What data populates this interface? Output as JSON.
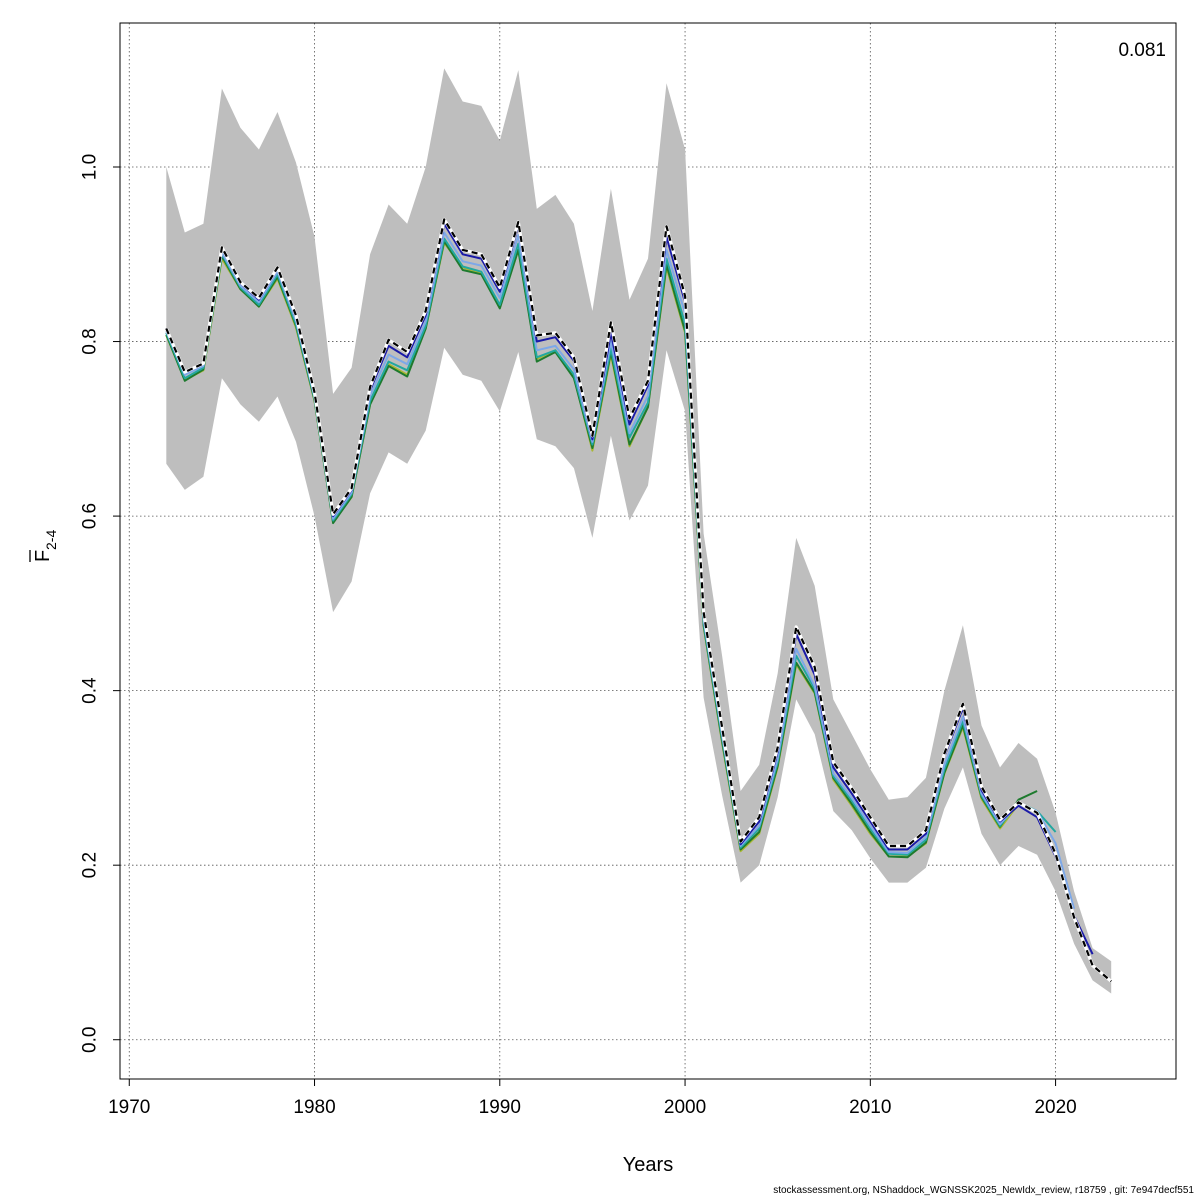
{
  "footer_text": "stockassessment.org, NShaddock_WGNSSK2025_NewIdx_review, r18759 , git: 7e947decf551",
  "chart_data": {
    "type": "line",
    "corner_value": "0.081",
    "xlabel": "Years",
    "ylabel_main": "F",
    "ylabel_sub": "2-4",
    "xlim": [
      1969.5,
      2026.5
    ],
    "ylim": [
      -0.045,
      1.165
    ],
    "xticks": [
      1970,
      1980,
      1990,
      2000,
      2010,
      2020
    ],
    "yticks": [
      0.0,
      0.2,
      0.4,
      0.6,
      0.8,
      1.0
    ],
    "ytick_labels": [
      "0.0",
      "0.2",
      "0.4",
      "0.6",
      "0.8",
      "1.0"
    ],
    "grid": true,
    "band_color": "#bebebe",
    "band": {
      "x": [
        1972,
        1973,
        1974,
        1975,
        1976,
        1977,
        1978,
        1979,
        1980,
        1981,
        1982,
        1983,
        1984,
        1985,
        1986,
        1987,
        1988,
        1989,
        1990,
        1991,
        1992,
        1993,
        1994,
        1995,
        1996,
        1997,
        1998,
        1999,
        2000,
        2001,
        2002,
        2003,
        2004,
        2005,
        2006,
        2007,
        2008,
        2009,
        2010,
        2011,
        2012,
        2013,
        2014,
        2015,
        2016,
        2017,
        2018,
        2019,
        2020,
        2021,
        2022,
        2023
      ],
      "upper": [
        1.0,
        0.925,
        0.935,
        1.09,
        1.045,
        1.02,
        1.063,
        1.005,
        0.92,
        0.74,
        0.77,
        0.9,
        0.957,
        0.935,
        1.0,
        1.113,
        1.075,
        1.07,
        1.03,
        1.111,
        0.952,
        0.968,
        0.935,
        0.835,
        0.975,
        0.848,
        0.895,
        1.096,
        1.02,
        0.58,
        0.44,
        0.285,
        0.315,
        0.42,
        0.575,
        0.52,
        0.39,
        0.35,
        0.31,
        0.275,
        0.278,
        0.3,
        0.4,
        0.475,
        0.36,
        0.312,
        0.34,
        0.322,
        0.26,
        0.17,
        0.105,
        0.09
      ],
      "lower": [
        0.66,
        0.63,
        0.645,
        0.758,
        0.728,
        0.708,
        0.737,
        0.685,
        0.6,
        0.49,
        0.525,
        0.626,
        0.673,
        0.66,
        0.698,
        0.793,
        0.762,
        0.755,
        0.72,
        0.788,
        0.688,
        0.68,
        0.655,
        0.575,
        0.692,
        0.595,
        0.635,
        0.79,
        0.72,
        0.392,
        0.28,
        0.18,
        0.2,
        0.278,
        0.39,
        0.35,
        0.262,
        0.24,
        0.208,
        0.18,
        0.18,
        0.197,
        0.265,
        0.312,
        0.236,
        0.2,
        0.222,
        0.212,
        0.17,
        0.11,
        0.068,
        0.053
      ]
    },
    "series": [
      {
        "color": "#000000",
        "dashed": true,
        "x": [
          1972,
          1973,
          1974,
          1975,
          1976,
          1977,
          1978,
          1979,
          1980,
          1981,
          1982,
          1983,
          1984,
          1985,
          1986,
          1987,
          1988,
          1989,
          1990,
          1991,
          1992,
          1993,
          1994,
          1995,
          1996,
          1997,
          1998,
          1999,
          2000,
          2001,
          2002,
          2003,
          2004,
          2005,
          2006,
          2007,
          2008,
          2009,
          2010,
          2011,
          2012,
          2013,
          2014,
          2015,
          2016,
          2017,
          2018,
          2019,
          2020,
          2021,
          2022,
          2023
        ],
        "y": [
          0.815,
          0.765,
          0.775,
          0.908,
          0.868,
          0.85,
          0.885,
          0.83,
          0.742,
          0.602,
          0.632,
          0.748,
          0.802,
          0.788,
          0.835,
          0.94,
          0.905,
          0.9,
          0.862,
          0.937,
          0.807,
          0.81,
          0.782,
          0.692,
          0.822,
          0.712,
          0.755,
          0.932,
          0.852,
          0.49,
          0.358,
          0.227,
          0.255,
          0.335,
          0.473,
          0.427,
          0.318,
          0.288,
          0.255,
          0.222,
          0.222,
          0.24,
          0.328,
          0.385,
          0.29,
          0.252,
          0.272,
          0.26,
          0.213,
          0.14,
          0.085,
          0.067
        ]
      },
      {
        "color": "#1a1aa8",
        "dashed": false,
        "x": [
          1972,
          1973,
          1974,
          1975,
          1976,
          1977,
          1978,
          1979,
          1980,
          1981,
          1982,
          1983,
          1984,
          1985,
          1986,
          1987,
          1988,
          1989,
          1990,
          1991,
          1992,
          1993,
          1994,
          1995,
          1996,
          1997,
          1998,
          1999,
          2000,
          2001,
          2002,
          2003,
          2004,
          2005,
          2006,
          2007,
          2008,
          2009,
          2010,
          2011,
          2012,
          2013,
          2014,
          2015,
          2016,
          2017,
          2018,
          2019,
          2020,
          2021,
          2022
        ],
        "y": [
          0.815,
          0.765,
          0.775,
          0.907,
          0.867,
          0.848,
          0.884,
          0.828,
          0.74,
          0.6,
          0.63,
          0.744,
          0.795,
          0.782,
          0.83,
          0.935,
          0.9,
          0.895,
          0.857,
          0.933,
          0.8,
          0.805,
          0.778,
          0.688,
          0.81,
          0.705,
          0.75,
          0.92,
          0.845,
          0.488,
          0.356,
          0.224,
          0.25,
          0.33,
          0.465,
          0.418,
          0.312,
          0.282,
          0.25,
          0.218,
          0.218,
          0.236,
          0.325,
          0.38,
          0.286,
          0.25,
          0.268,
          0.255,
          0.21,
          0.142,
          0.098
        ]
      },
      {
        "color": "#7da8e8",
        "dashed": false,
        "x": [
          1972,
          1973,
          1974,
          1975,
          1976,
          1977,
          1978,
          1979,
          1980,
          1981,
          1982,
          1983,
          1984,
          1985,
          1986,
          1987,
          1988,
          1989,
          1990,
          1991,
          1992,
          1993,
          1994,
          1995,
          1996,
          1997,
          1998,
          1999,
          2000,
          2001,
          2002,
          2003,
          2004,
          2005,
          2006,
          2007,
          2008,
          2009,
          2010,
          2011,
          2012,
          2013,
          2014,
          2015,
          2016,
          2017,
          2018,
          2019,
          2020,
          2021
        ],
        "y": [
          0.812,
          0.762,
          0.772,
          0.902,
          0.864,
          0.845,
          0.88,
          0.824,
          0.737,
          0.597,
          0.627,
          0.738,
          0.785,
          0.774,
          0.823,
          0.925,
          0.892,
          0.887,
          0.85,
          0.922,
          0.79,
          0.795,
          0.768,
          0.685,
          0.8,
          0.695,
          0.738,
          0.905,
          0.832,
          0.482,
          0.35,
          0.222,
          0.245,
          0.322,
          0.448,
          0.405,
          0.305,
          0.277,
          0.245,
          0.215,
          0.214,
          0.232,
          0.315,
          0.37,
          0.282,
          0.247,
          0.27,
          0.262,
          0.225,
          0.15
        ]
      },
      {
        "color": "#22a8a0",
        "dashed": false,
        "x": [
          1972,
          1973,
          1974,
          1975,
          1976,
          1977,
          1978,
          1979,
          1980,
          1981,
          1982,
          1983,
          1984,
          1985,
          1986,
          1987,
          1988,
          1989,
          1990,
          1991,
          1992,
          1993,
          1994,
          1995,
          1996,
          1997,
          1998,
          1999,
          2000,
          2001,
          2002,
          2003,
          2004,
          2005,
          2006,
          2007,
          2008,
          2009,
          2010,
          2011,
          2012,
          2013,
          2014,
          2015,
          2016,
          2017,
          2018,
          2019,
          2020
        ],
        "y": [
          0.81,
          0.758,
          0.77,
          0.9,
          0.862,
          0.842,
          0.877,
          0.82,
          0.735,
          0.595,
          0.625,
          0.732,
          0.777,
          0.767,
          0.818,
          0.918,
          0.886,
          0.88,
          0.842,
          0.912,
          0.782,
          0.79,
          0.762,
          0.682,
          0.792,
          0.69,
          0.73,
          0.895,
          0.82,
          0.478,
          0.346,
          0.22,
          0.242,
          0.318,
          0.44,
          0.402,
          0.302,
          0.274,
          0.242,
          0.213,
          0.212,
          0.229,
          0.31,
          0.365,
          0.28,
          0.245,
          0.272,
          0.262,
          0.238
        ]
      },
      {
        "color": "#1e7a2e",
        "dashed": false,
        "x": [
          1972,
          1973,
          1974,
          1975,
          1976,
          1977,
          1978,
          1979,
          1980,
          1981,
          1982,
          1983,
          1984,
          1985,
          1986,
          1987,
          1988,
          1989,
          1990,
          1991,
          1992,
          1993,
          1994,
          1995,
          1996,
          1997,
          1998,
          1999,
          2000,
          2001,
          2002,
          2003,
          2004,
          2005,
          2006,
          2007,
          2008,
          2009,
          2010,
          2011,
          2012,
          2013,
          2014,
          2015,
          2016,
          2017,
          2018,
          2019
        ],
        "y": [
          0.808,
          0.755,
          0.768,
          0.898,
          0.86,
          0.84,
          0.874,
          0.818,
          0.733,
          0.592,
          0.622,
          0.728,
          0.772,
          0.76,
          0.815,
          0.915,
          0.882,
          0.877,
          0.838,
          0.905,
          0.777,
          0.788,
          0.758,
          0.678,
          0.788,
          0.682,
          0.725,
          0.888,
          0.812,
          0.475,
          0.342,
          0.218,
          0.238,
          0.314,
          0.432,
          0.398,
          0.3,
          0.27,
          0.238,
          0.21,
          0.209,
          0.226,
          0.306,
          0.36,
          0.278,
          0.244,
          0.275,
          0.285
        ]
      },
      {
        "color": "#a8b832",
        "dashed": false,
        "x": [
          1972,
          1973,
          1974,
          1975,
          1976,
          1977,
          1978,
          1979,
          1980,
          1981,
          1982,
          1983,
          1984,
          1985,
          1986,
          1987,
          1988,
          1989,
          1990,
          1991,
          1992,
          1993,
          1994,
          1995,
          1996,
          1997,
          1998,
          1999,
          2000,
          2001,
          2002,
          2003,
          2004,
          2005,
          2006,
          2007,
          2008,
          2009,
          2010,
          2011,
          2012,
          2013,
          2014,
          2015,
          2016,
          2017,
          2018
        ],
        "y": [
          0.807,
          0.756,
          0.767,
          0.895,
          0.86,
          0.84,
          0.872,
          0.816,
          0.732,
          0.593,
          0.622,
          0.728,
          0.774,
          0.762,
          0.815,
          0.913,
          0.885,
          0.878,
          0.84,
          0.905,
          0.78,
          0.79,
          0.76,
          0.675,
          0.785,
          0.68,
          0.725,
          0.885,
          0.81,
          0.474,
          0.34,
          0.216,
          0.236,
          0.312,
          0.43,
          0.397,
          0.298,
          0.268,
          0.236,
          0.21,
          0.21,
          0.225,
          0.305,
          0.358,
          0.276,
          0.242,
          0.27
        ]
      }
    ]
  }
}
